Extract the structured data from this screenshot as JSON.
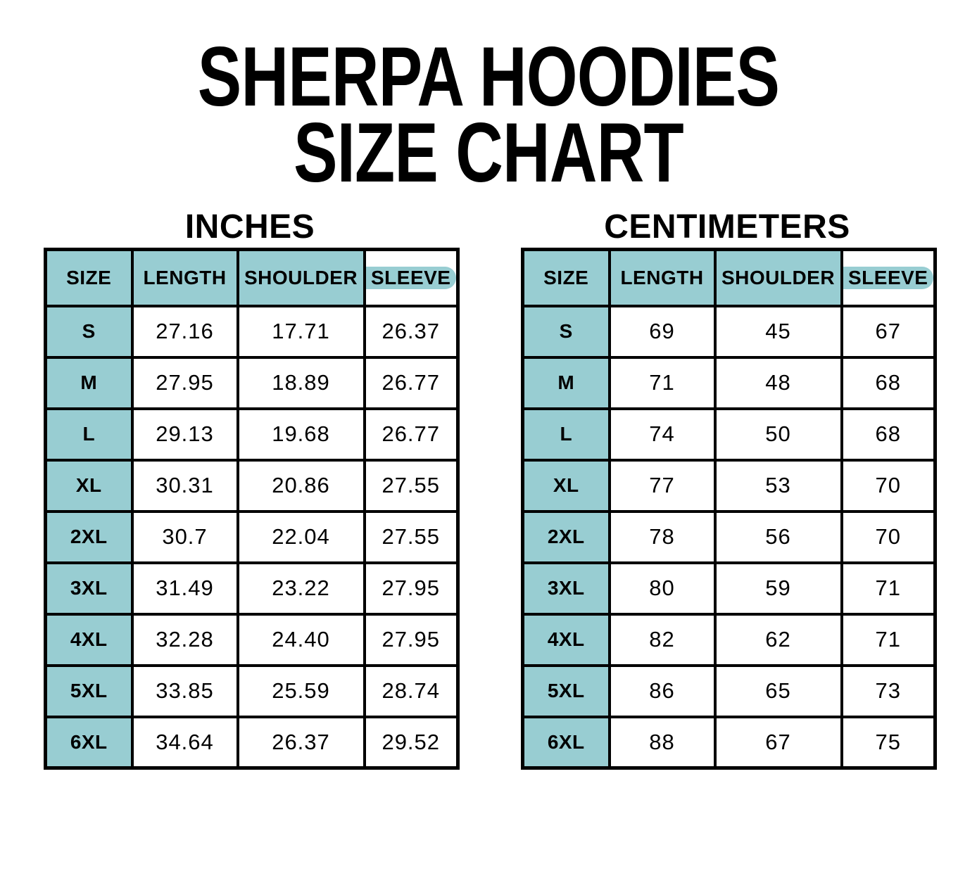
{
  "header": {
    "title_line1": "SHERPA HOODIES",
    "title_line2": "SIZE CHART"
  },
  "colors": {
    "header_bg": "#98CDD2",
    "border": "#000000",
    "text": "#000000",
    "page_bg": "#FFFFFF"
  },
  "tables": [
    {
      "unit_label": "INCHES",
      "columns": [
        "SIZE",
        "LENGTH",
        "SHOULDER",
        "SLEEVE"
      ],
      "rows": [
        {
          "size": "S",
          "values": [
            "27.16",
            "17.71",
            "26.37"
          ]
        },
        {
          "size": "M",
          "values": [
            "27.95",
            "18.89",
            "26.77"
          ]
        },
        {
          "size": "L",
          "values": [
            "29.13",
            "19.68",
            "26.77"
          ]
        },
        {
          "size": "XL",
          "values": [
            "30.31",
            "20.86",
            "27.55"
          ]
        },
        {
          "size": "2XL",
          "values": [
            "30.7",
            "22.04",
            "27.55"
          ]
        },
        {
          "size": "3XL",
          "values": [
            "31.49",
            "23.22",
            "27.95"
          ]
        },
        {
          "size": "4XL",
          "values": [
            "32.28",
            "24.40",
            "27.95"
          ]
        },
        {
          "size": "5XL",
          "values": [
            "33.85",
            "25.59",
            "28.74"
          ]
        },
        {
          "size": "6XL",
          "values": [
            "34.64",
            "26.37",
            "29.52"
          ]
        }
      ]
    },
    {
      "unit_label": "CENTIMETERS",
      "columns": [
        "SIZE",
        "LENGTH",
        "SHOULDER",
        "SLEEVE"
      ],
      "rows": [
        {
          "size": "S",
          "values": [
            "69",
            "45",
            "67"
          ]
        },
        {
          "size": "M",
          "values": [
            "71",
            "48",
            "68"
          ]
        },
        {
          "size": "L",
          "values": [
            "74",
            "50",
            "68"
          ]
        },
        {
          "size": "XL",
          "values": [
            "77",
            "53",
            "70"
          ]
        },
        {
          "size": "2XL",
          "values": [
            "78",
            "56",
            "70"
          ]
        },
        {
          "size": "3XL",
          "values": [
            "80",
            "59",
            "71"
          ]
        },
        {
          "size": "4XL",
          "values": [
            "82",
            "62",
            "71"
          ]
        },
        {
          "size": "5XL",
          "values": [
            "86",
            "65",
            "73"
          ]
        },
        {
          "size": "6XL",
          "values": [
            "88",
            "67",
            "75"
          ]
        }
      ]
    }
  ]
}
